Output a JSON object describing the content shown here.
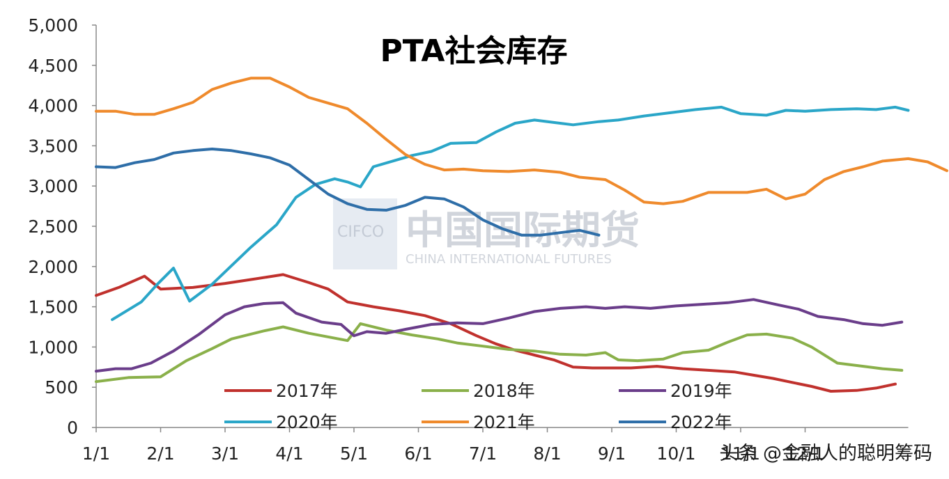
{
  "chart_data": {
    "type": "line",
    "title": "PTA社会库存",
    "xlabel": "",
    "ylabel": "",
    "x_range": [
      0,
      12.6
    ],
    "ylim": [
      0,
      5000
    ],
    "y_ticks": [
      0,
      500,
      1000,
      1500,
      2000,
      2500,
      3000,
      3500,
      4000,
      4500,
      5000
    ],
    "y_tick_labels": [
      "0",
      "500",
      "1,000",
      "1,500",
      "2,000",
      "2,500",
      "3,000",
      "3,500",
      "4,000",
      "4,500",
      "5,000"
    ],
    "x_ticks": [
      0,
      1,
      2,
      3,
      4,
      5,
      6,
      7,
      8,
      9,
      10,
      11
    ],
    "x_tick_labels": [
      "1/1",
      "2/1",
      "3/1",
      "4/1",
      "5/1",
      "6/1",
      "7/1",
      "8/1",
      "9/1",
      "10/1",
      "11/1",
      "12/1"
    ],
    "grid": false,
    "legend_position": "bottom",
    "series": [
      {
        "name": "2017年",
        "color": "#c0312d",
        "points": [
          [
            0,
            1640
          ],
          [
            0.35,
            1740
          ],
          [
            0.75,
            1880
          ],
          [
            1,
            1720
          ],
          [
            1.5,
            1740
          ],
          [
            2,
            1790
          ],
          [
            2.5,
            1850
          ],
          [
            2.9,
            1900
          ],
          [
            3.3,
            1800
          ],
          [
            3.6,
            1720
          ],
          [
            3.9,
            1560
          ],
          [
            4.3,
            1500
          ],
          [
            4.7,
            1450
          ],
          [
            5.1,
            1390
          ],
          [
            5.5,
            1290
          ],
          [
            5.9,
            1140
          ],
          [
            6.2,
            1040
          ],
          [
            6.5,
            960
          ],
          [
            6.8,
            900
          ],
          [
            7.1,
            840
          ],
          [
            7.4,
            750
          ],
          [
            7.7,
            740
          ],
          [
            8.3,
            740
          ],
          [
            8.7,
            760
          ],
          [
            9.1,
            730
          ],
          [
            9.5,
            710
          ],
          [
            9.9,
            690
          ],
          [
            10.2,
            650
          ],
          [
            10.5,
            610
          ],
          [
            10.8,
            560
          ],
          [
            11.1,
            510
          ],
          [
            11.4,
            450
          ],
          [
            11.8,
            460
          ],
          [
            12.1,
            490
          ],
          [
            12.4,
            540
          ]
        ]
      },
      {
        "name": "2018年",
        "color": "#8ab04a",
        "points": [
          [
            0,
            570
          ],
          [
            0.5,
            620
          ],
          [
            1,
            630
          ],
          [
            1.4,
            830
          ],
          [
            1.8,
            980
          ],
          [
            2.1,
            1100
          ],
          [
            2.6,
            1200
          ],
          [
            2.9,
            1250
          ],
          [
            3.3,
            1170
          ],
          [
            3.9,
            1080
          ],
          [
            4.1,
            1290
          ],
          [
            4.5,
            1210
          ],
          [
            4.9,
            1150
          ],
          [
            5.3,
            1100
          ],
          [
            5.6,
            1050
          ],
          [
            6,
            1010
          ],
          [
            6.4,
            970
          ],
          [
            6.8,
            950
          ],
          [
            7.2,
            910
          ],
          [
            7.6,
            900
          ],
          [
            7.9,
            930
          ],
          [
            8.1,
            840
          ],
          [
            8.4,
            830
          ],
          [
            8.8,
            850
          ],
          [
            9.1,
            930
          ],
          [
            9.5,
            960
          ],
          [
            9.8,
            1060
          ],
          [
            10.1,
            1150
          ],
          [
            10.4,
            1160
          ],
          [
            10.8,
            1110
          ],
          [
            11.1,
            1000
          ],
          [
            11.5,
            800
          ],
          [
            11.9,
            760
          ],
          [
            12.2,
            730
          ],
          [
            12.5,
            710
          ]
        ]
      },
      {
        "name": "2019年",
        "color": "#6a3d8a",
        "points": [
          [
            0,
            700
          ],
          [
            0.3,
            730
          ],
          [
            0.55,
            730
          ],
          [
            0.85,
            800
          ],
          [
            1.2,
            950
          ],
          [
            1.6,
            1160
          ],
          [
            2.0,
            1400
          ],
          [
            2.3,
            1500
          ],
          [
            2.6,
            1540
          ],
          [
            2.9,
            1550
          ],
          [
            3.1,
            1420
          ],
          [
            3.5,
            1310
          ],
          [
            3.8,
            1280
          ],
          [
            4.0,
            1140
          ],
          [
            4.2,
            1190
          ],
          [
            4.5,
            1170
          ],
          [
            4.8,
            1220
          ],
          [
            5.2,
            1280
          ],
          [
            5.6,
            1300
          ],
          [
            6.0,
            1290
          ],
          [
            6.4,
            1360
          ],
          [
            6.8,
            1440
          ],
          [
            7.2,
            1480
          ],
          [
            7.6,
            1500
          ],
          [
            7.9,
            1480
          ],
          [
            8.2,
            1500
          ],
          [
            8.6,
            1480
          ],
          [
            9.0,
            1510
          ],
          [
            9.4,
            1530
          ],
          [
            9.8,
            1550
          ],
          [
            10.2,
            1590
          ],
          [
            10.6,
            1520
          ],
          [
            10.9,
            1470
          ],
          [
            11.2,
            1380
          ],
          [
            11.6,
            1340
          ],
          [
            11.9,
            1290
          ],
          [
            12.2,
            1270
          ],
          [
            12.5,
            1310
          ]
        ]
      },
      {
        "name": "2020年",
        "color": "#2aa6c8",
        "points": [
          [
            0.25,
            1340
          ],
          [
            0.7,
            1560
          ],
          [
            0.95,
            1780
          ],
          [
            1.2,
            1980
          ],
          [
            1.45,
            1570
          ],
          [
            1.8,
            1780
          ],
          [
            2.1,
            2010
          ],
          [
            2.4,
            2240
          ],
          [
            2.8,
            2520
          ],
          [
            3.1,
            2860
          ],
          [
            3.4,
            3020
          ],
          [
            3.7,
            3090
          ],
          [
            3.9,
            3050
          ],
          [
            4.1,
            2990
          ],
          [
            4.3,
            3240
          ],
          [
            4.6,
            3310
          ],
          [
            4.9,
            3380
          ],
          [
            5.2,
            3430
          ],
          [
            5.5,
            3530
          ],
          [
            5.9,
            3540
          ],
          [
            6.2,
            3670
          ],
          [
            6.5,
            3780
          ],
          [
            6.8,
            3820
          ],
          [
            7.1,
            3790
          ],
          [
            7.4,
            3760
          ],
          [
            7.8,
            3800
          ],
          [
            8.1,
            3820
          ],
          [
            8.5,
            3870
          ],
          [
            8.9,
            3910
          ],
          [
            9.3,
            3950
          ],
          [
            9.7,
            3980
          ],
          [
            10.0,
            3900
          ],
          [
            10.4,
            3880
          ],
          [
            10.7,
            3940
          ],
          [
            11.0,
            3930
          ],
          [
            11.4,
            3950
          ],
          [
            11.8,
            3960
          ],
          [
            12.1,
            3950
          ],
          [
            12.4,
            3980
          ],
          [
            12.6,
            3940
          ]
        ]
      },
      {
        "name": "2021年",
        "color": "#ef8a2c",
        "points": [
          [
            0,
            3930
          ],
          [
            0.3,
            3930
          ],
          [
            0.6,
            3890
          ],
          [
            0.9,
            3890
          ],
          [
            1.2,
            3960
          ],
          [
            1.5,
            4040
          ],
          [
            1.8,
            4200
          ],
          [
            2.1,
            4280
          ],
          [
            2.4,
            4340
          ],
          [
            2.7,
            4340
          ],
          [
            3.0,
            4230
          ],
          [
            3.3,
            4100
          ],
          [
            3.6,
            4030
          ],
          [
            3.9,
            3960
          ],
          [
            4.2,
            3780
          ],
          [
            4.5,
            3580
          ],
          [
            4.8,
            3390
          ],
          [
            5.1,
            3270
          ],
          [
            5.4,
            3200
          ],
          [
            5.7,
            3210
          ],
          [
            6.0,
            3190
          ],
          [
            6.4,
            3180
          ],
          [
            6.8,
            3200
          ],
          [
            7.2,
            3170
          ],
          [
            7.5,
            3110
          ],
          [
            7.9,
            3080
          ],
          [
            8.2,
            2950
          ],
          [
            8.5,
            2800
          ],
          [
            8.8,
            2780
          ],
          [
            9.1,
            2810
          ],
          [
            9.5,
            2920
          ],
          [
            9.8,
            2920
          ],
          [
            10.1,
            2920
          ],
          [
            10.4,
            2960
          ],
          [
            10.7,
            2840
          ],
          [
            11.0,
            2900
          ],
          [
            11.3,
            3080
          ],
          [
            11.6,
            3180
          ],
          [
            11.9,
            3240
          ],
          [
            12.2,
            3310
          ],
          [
            12.6,
            3340
          ],
          [
            12.9,
            3300
          ],
          [
            13.2,
            3190
          ]
        ]
      },
      {
        "name": "2022年",
        "color": "#2e6ea8",
        "points": [
          [
            0,
            3240
          ],
          [
            0.3,
            3230
          ],
          [
            0.6,
            3290
          ],
          [
            0.9,
            3330
          ],
          [
            1.2,
            3410
          ],
          [
            1.5,
            3440
          ],
          [
            1.8,
            3460
          ],
          [
            2.1,
            3440
          ],
          [
            2.4,
            3400
          ],
          [
            2.7,
            3350
          ],
          [
            3.0,
            3260
          ],
          [
            3.3,
            3080
          ],
          [
            3.6,
            2900
          ],
          [
            3.9,
            2780
          ],
          [
            4.2,
            2710
          ],
          [
            4.5,
            2700
          ],
          [
            4.8,
            2760
          ],
          [
            5.1,
            2860
          ],
          [
            5.4,
            2840
          ],
          [
            5.7,
            2740
          ],
          [
            6.0,
            2580
          ],
          [
            6.3,
            2470
          ],
          [
            6.6,
            2390
          ],
          [
            6.9,
            2390
          ],
          [
            7.2,
            2420
          ],
          [
            7.5,
            2450
          ],
          [
            7.8,
            2390
          ]
        ]
      }
    ]
  },
  "watermark": {
    "logo_text": "CIFCO",
    "cn_text": "中国国际期货",
    "en_text": "CHINA INTERNATIONAL FUTURES"
  },
  "credit": "头条 @金融人的聪明筹码"
}
